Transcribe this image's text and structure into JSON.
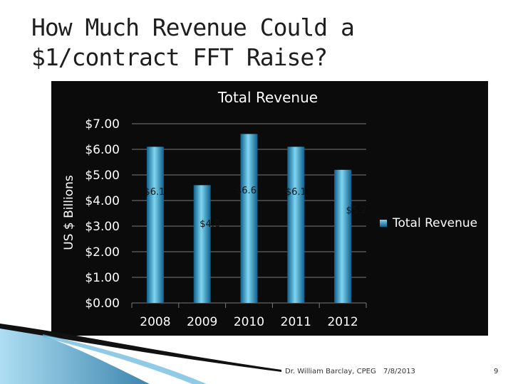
{
  "slide": {
    "title": "How Much Revenue Could a $1/contract FFT Raise?",
    "footer_author": "Dr. William Barclay, CPEG",
    "footer_date": "7/8/2013",
    "footer_page": "9"
  },
  "colors": {
    "panel_bg": "#0b0b0b",
    "bar_light": "#7fd6f0",
    "bar_dark": "#0e5f8c",
    "grid": "#7a7a7a"
  },
  "chart_data": {
    "type": "bar",
    "title": "Total Revenue",
    "ylabel": "US $ Billions",
    "xlabel": "",
    "categories": [
      "2008",
      "2009",
      "2010",
      "2011",
      "2012"
    ],
    "series": [
      {
        "name": "Total Revenue",
        "values": [
          6.1,
          4.6,
          6.6,
          6.1,
          5.2
        ]
      }
    ],
    "data_labels": [
      "$6.1",
      "$4.6",
      "$6.6",
      "$6.1",
      "$5.2"
    ],
    "y_ticks": [
      "$0.00",
      "$1.00",
      "$2.00",
      "$3.00",
      "$4.00",
      "$5.00",
      "$6.00",
      "$7.00"
    ],
    "ylim": [
      0,
      7
    ],
    "grid": true,
    "legend_position": "right"
  }
}
